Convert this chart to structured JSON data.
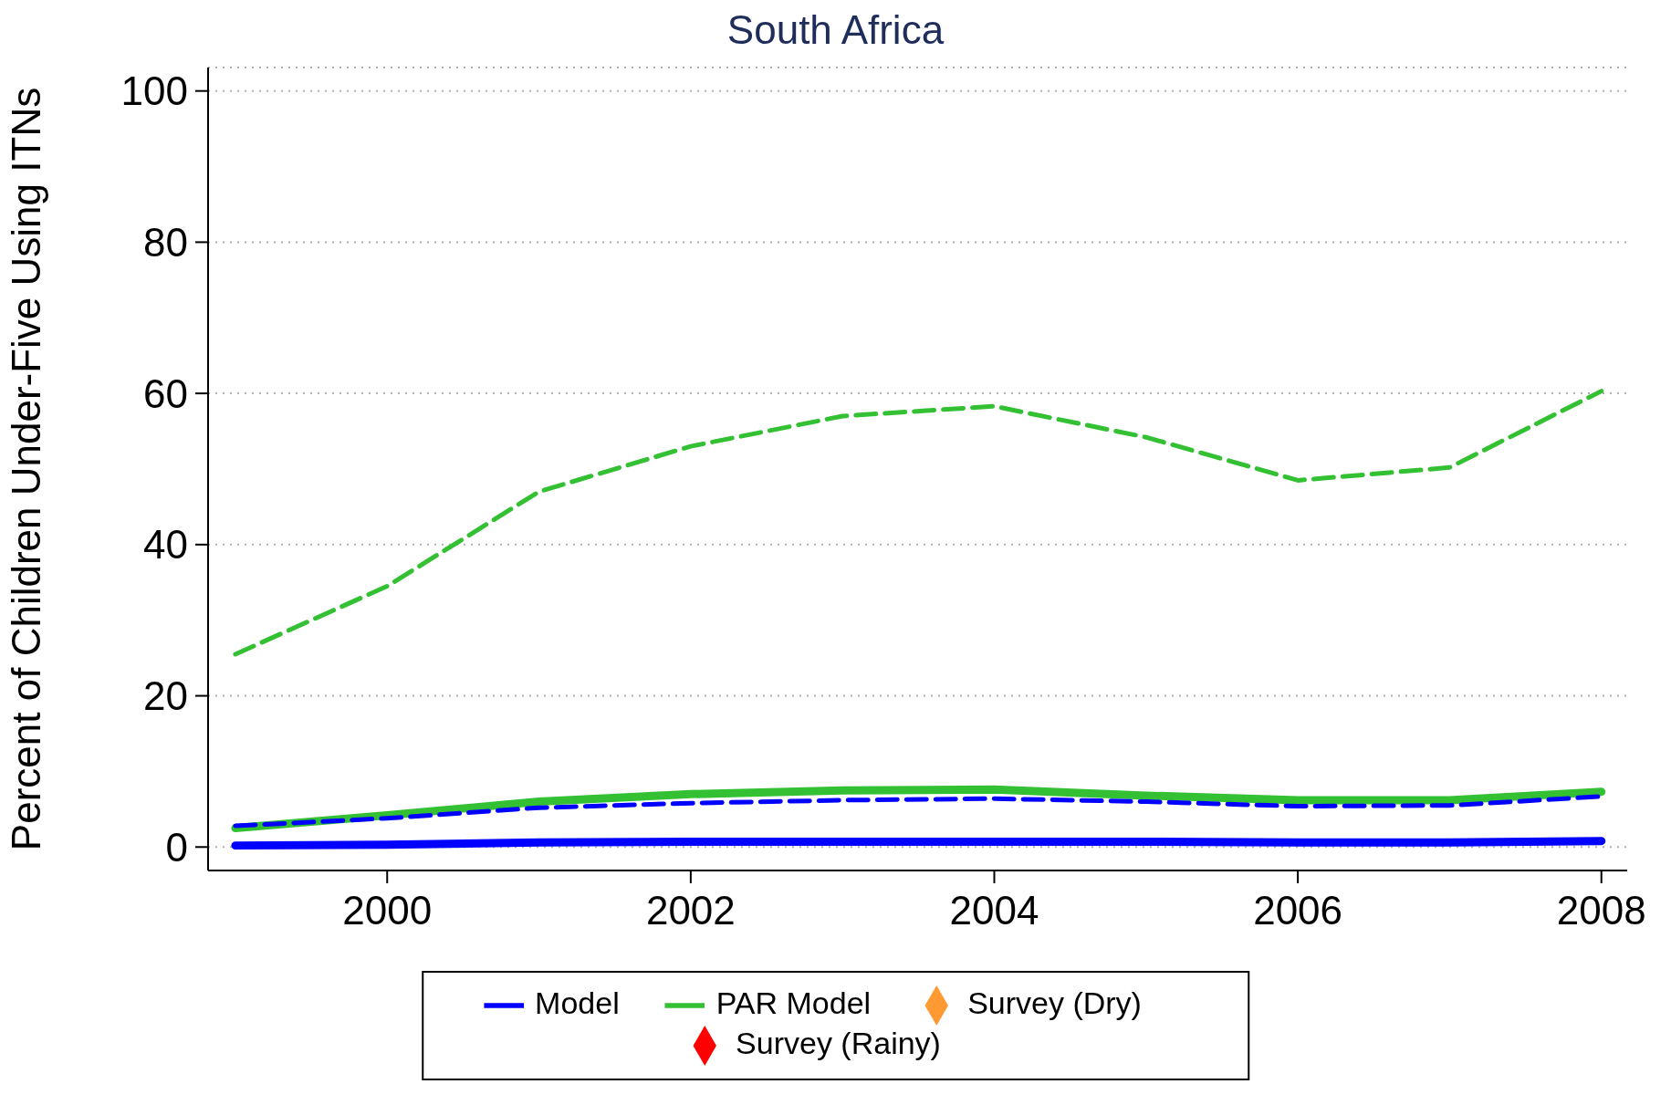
{
  "chart_data": {
    "type": "line",
    "title": "South Africa",
    "ylabel": "Percent of Children Under-Five Using ITNs",
    "x": [
      1999,
      2000,
      2001,
      2002,
      2003,
      2004,
      2005,
      2006,
      2007,
      2008
    ],
    "xlim": [
      1998.82,
      2008.17
    ],
    "xticks": [
      2000,
      2002,
      2004,
      2006,
      2008
    ],
    "ylim": [
      -3.1,
      103.1
    ],
    "yticks": [
      0,
      20,
      40,
      60,
      80,
      100
    ],
    "grid": "y",
    "legend": "bottom",
    "series": [
      {
        "name": "Model",
        "color": "#0000ff",
        "line_style": "solid",
        "values": [
          0.2,
          0.3,
          0.6,
          0.7,
          0.7,
          0.7,
          0.7,
          0.6,
          0.6,
          0.8
        ]
      },
      {
        "name": "PAR Model",
        "color": "#33c033",
        "line_style": "solid",
        "values": [
          2.5,
          4.2,
          6,
          7,
          7.5,
          7.6,
          6.8,
          6.2,
          6.2,
          7.3
        ]
      },
      {
        "color": "#0000ff",
        "line_style": "dashed",
        "values": [
          2.8,
          3.8,
          5.2,
          5.8,
          6.2,
          6.4,
          6,
          5.4,
          5.5,
          6.7
        ]
      },
      {
        "color": "#33c033",
        "line_style": "dashed",
        "values": [
          25.5,
          34.5,
          47,
          53,
          57,
          58.3,
          54.2,
          48.5,
          50.2,
          60.3
        ]
      },
      {
        "name": "Survey (Rainy)",
        "type": "scatter",
        "marker": "diamond",
        "color": "#ff0000",
        "values": [
          null,
          null,
          null,
          null,
          null,
          null,
          null,
          null,
          null,
          null
        ]
      },
      {
        "name": "Survey (Dry)",
        "type": "scatter",
        "marker": "diamond",
        "color": "#ff9933",
        "values": [
          null,
          null,
          null,
          null,
          null,
          null,
          null,
          null,
          null,
          null
        ]
      }
    ]
  }
}
